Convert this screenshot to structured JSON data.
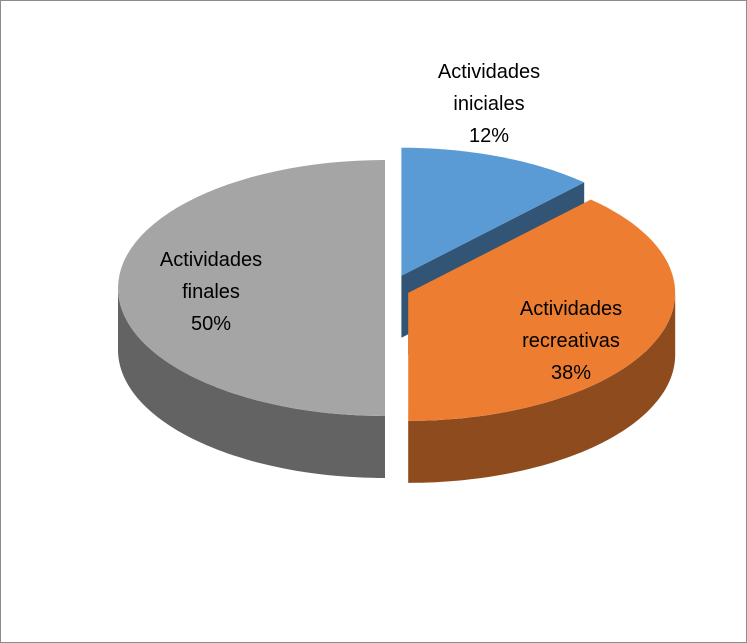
{
  "chart_data": {
    "type": "pie3d",
    "categories": [
      "Actividades iniciales",
      "Actividades recreativas",
      "Actividades finales"
    ],
    "values": [
      12,
      38,
      50
    ],
    "value_labels": [
      "12%",
      "38%",
      "50%"
    ],
    "colors": [
      "#5b9bd5",
      "#ed7d31",
      "#a5a5a5"
    ]
  }
}
